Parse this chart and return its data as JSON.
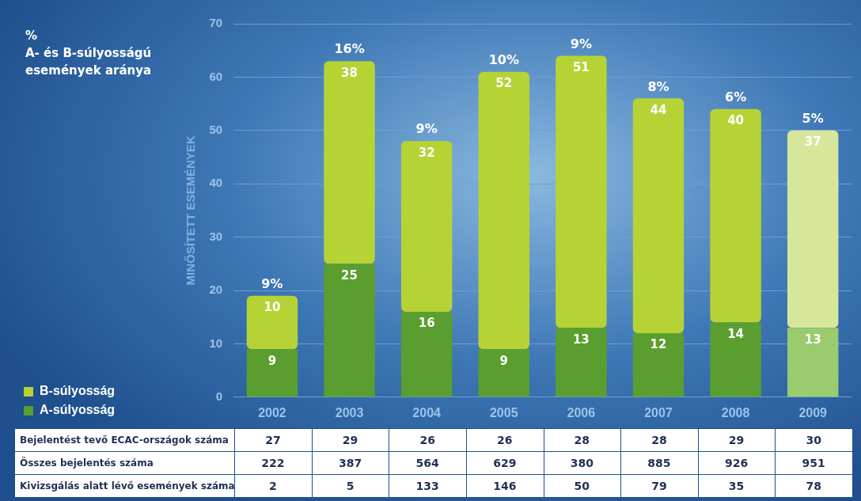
{
  "chart_data": {
    "type": "bar",
    "title": "%",
    "subtitle": "A- és B-súlyosságú események aránya",
    "ylabel": "MINŐSÍTETT ESEMÉNYEK",
    "categories": [
      "2002",
      "2003",
      "2004",
      "2005",
      "2006",
      "2007",
      "2008",
      "2009"
    ],
    "stacked": true,
    "series": [
      {
        "name": "A-súlyosság",
        "color": "#5a9e2f",
        "colors": [
          "#5a9e2f",
          "#5a9e2f",
          "#5a9e2f",
          "#5a9e2f",
          "#5a9e2f",
          "#5a9e2f",
          "#5a9e2f",
          "#9acb6e"
        ],
        "values": [
          9,
          25,
          16,
          9,
          13,
          12,
          14,
          13
        ]
      },
      {
        "name": "B-súlyosság",
        "color": "#b5d334",
        "colors": [
          "#b5d334",
          "#b5d334",
          "#b5d334",
          "#b5d334",
          "#b5d334",
          "#b5d334",
          "#b5d334",
          "#d6e79c"
        ],
        "values": [
          10,
          38,
          32,
          52,
          51,
          44,
          40,
          37
        ]
      }
    ],
    "ylim": [
      0,
      70
    ],
    "yticks": [
      0,
      10,
      20,
      30,
      40,
      50,
      60,
      70
    ],
    "grid": "y",
    "legend": "bottom left",
    "data_labels": true,
    "annotations": [
      {
        "text": "9%",
        "x": "2002",
        "y": 19
      },
      {
        "text": "16%",
        "x": "2003",
        "y": 63
      },
      {
        "text": "9%",
        "x": "2004",
        "y": 48
      },
      {
        "text": "10%",
        "x": "2005",
        "y": 61
      },
      {
        "text": "9%",
        "x": "2006",
        "y": 64
      },
      {
        "text": "8%",
        "x": "2007",
        "y": 56
      },
      {
        "text": "6%",
        "x": "2008",
        "y": 54
      },
      {
        "text": "5%",
        "x": "2009",
        "y": 50
      },
      "Bejelentést tevő ECAC-országok száma",
      "27",
      "29",
      "26",
      "26",
      "28",
      "28",
      "29",
      "30",
      "Összes bejelentés száma",
      "222",
      "387",
      "564",
      "629",
      "380",
      "885",
      "926",
      "951",
      "Kivizsgálás alatt lévő események száma",
      "2",
      "5",
      "133",
      "146",
      "50",
      "79",
      "35",
      "78"
    ]
  }
}
